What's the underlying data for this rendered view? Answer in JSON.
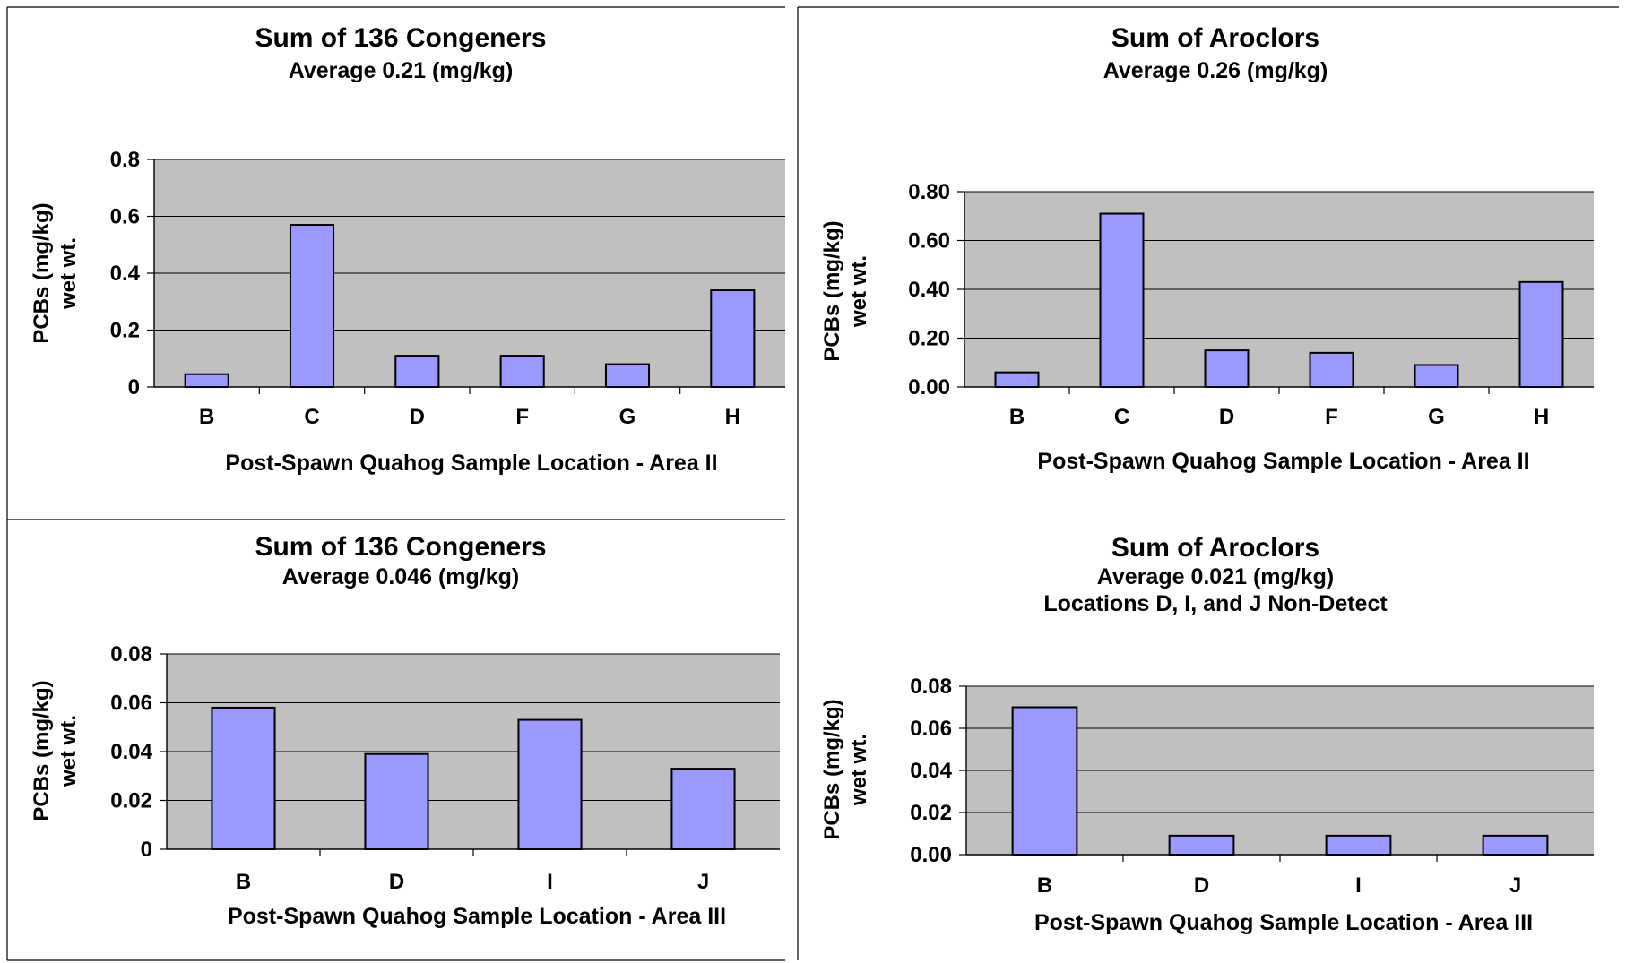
{
  "chart_data": [
    {
      "type": "bar",
      "title": "Sum of 136 Congeners",
      "subtitles": [
        "Average 0.21 (mg/kg)"
      ],
      "xlabel": "Post-Spawn Quahog Sample Location - Area II",
      "ylabel_lines": [
        "PCBs (mg/kg)",
        "wet wt."
      ],
      "categories": [
        "B",
        "C",
        "D",
        "F",
        "G",
        "H"
      ],
      "values": [
        0.045,
        0.57,
        0.11,
        0.11,
        0.08,
        0.34
      ],
      "yticks": [
        "0",
        "0.2",
        "0.4",
        "0.6",
        "0.8"
      ],
      "ylim": [
        0,
        0.8
      ],
      "grid": true,
      "bar_color": "#9999ff",
      "plot_bg": "#c0c0c0"
    },
    {
      "type": "bar",
      "title": "Sum of Aroclors",
      "subtitles": [
        "Average 0.26 (mg/kg)"
      ],
      "xlabel": "Post-Spawn Quahog Sample Location - Area II",
      "ylabel_lines": [
        "PCBs (mg/kg)",
        "wet wt."
      ],
      "categories": [
        "B",
        "C",
        "D",
        "F",
        "G",
        "H"
      ],
      "values": [
        0.06,
        0.71,
        0.15,
        0.14,
        0.09,
        0.43
      ],
      "yticks": [
        "0.00",
        "0.20",
        "0.40",
        "0.60",
        "0.80"
      ],
      "ylim": [
        0,
        0.8
      ],
      "grid": true,
      "bar_color": "#9999ff",
      "plot_bg": "#c0c0c0"
    },
    {
      "type": "bar",
      "title": "Sum of 136 Congeners",
      "subtitles": [
        "Average 0.046 (mg/kg)"
      ],
      "xlabel": "Post-Spawn Quahog Sample Location - Area III",
      "ylabel_lines": [
        "PCBs (mg/kg)",
        "wet wt."
      ],
      "categories": [
        "B",
        "D",
        "I",
        "J"
      ],
      "values": [
        0.058,
        0.039,
        0.053,
        0.033
      ],
      "yticks": [
        "0",
        "0.02",
        "0.04",
        "0.06",
        "0.08"
      ],
      "ylim": [
        0,
        0.08
      ],
      "grid": true,
      "bar_color": "#9999ff",
      "plot_bg": "#c0c0c0"
    },
    {
      "type": "bar",
      "title": "Sum of Aroclors",
      "subtitles": [
        "Average 0.021 (mg/kg)",
        "Locations D, I, and J Non-Detect"
      ],
      "xlabel": "Post-Spawn Quahog Sample Location - Area III",
      "ylabel_lines": [
        "PCBs (mg/kg)",
        "wet wt."
      ],
      "categories": [
        "B",
        "D",
        "I",
        "J"
      ],
      "values": [
        0.07,
        0.009,
        0.009,
        0.009
      ],
      "yticks": [
        "0.00",
        "0.02",
        "0.04",
        "0.06",
        "0.08"
      ],
      "ylim": [
        0,
        0.08
      ],
      "grid": true,
      "bar_color": "#9999ff",
      "plot_bg": "#c0c0c0"
    }
  ]
}
